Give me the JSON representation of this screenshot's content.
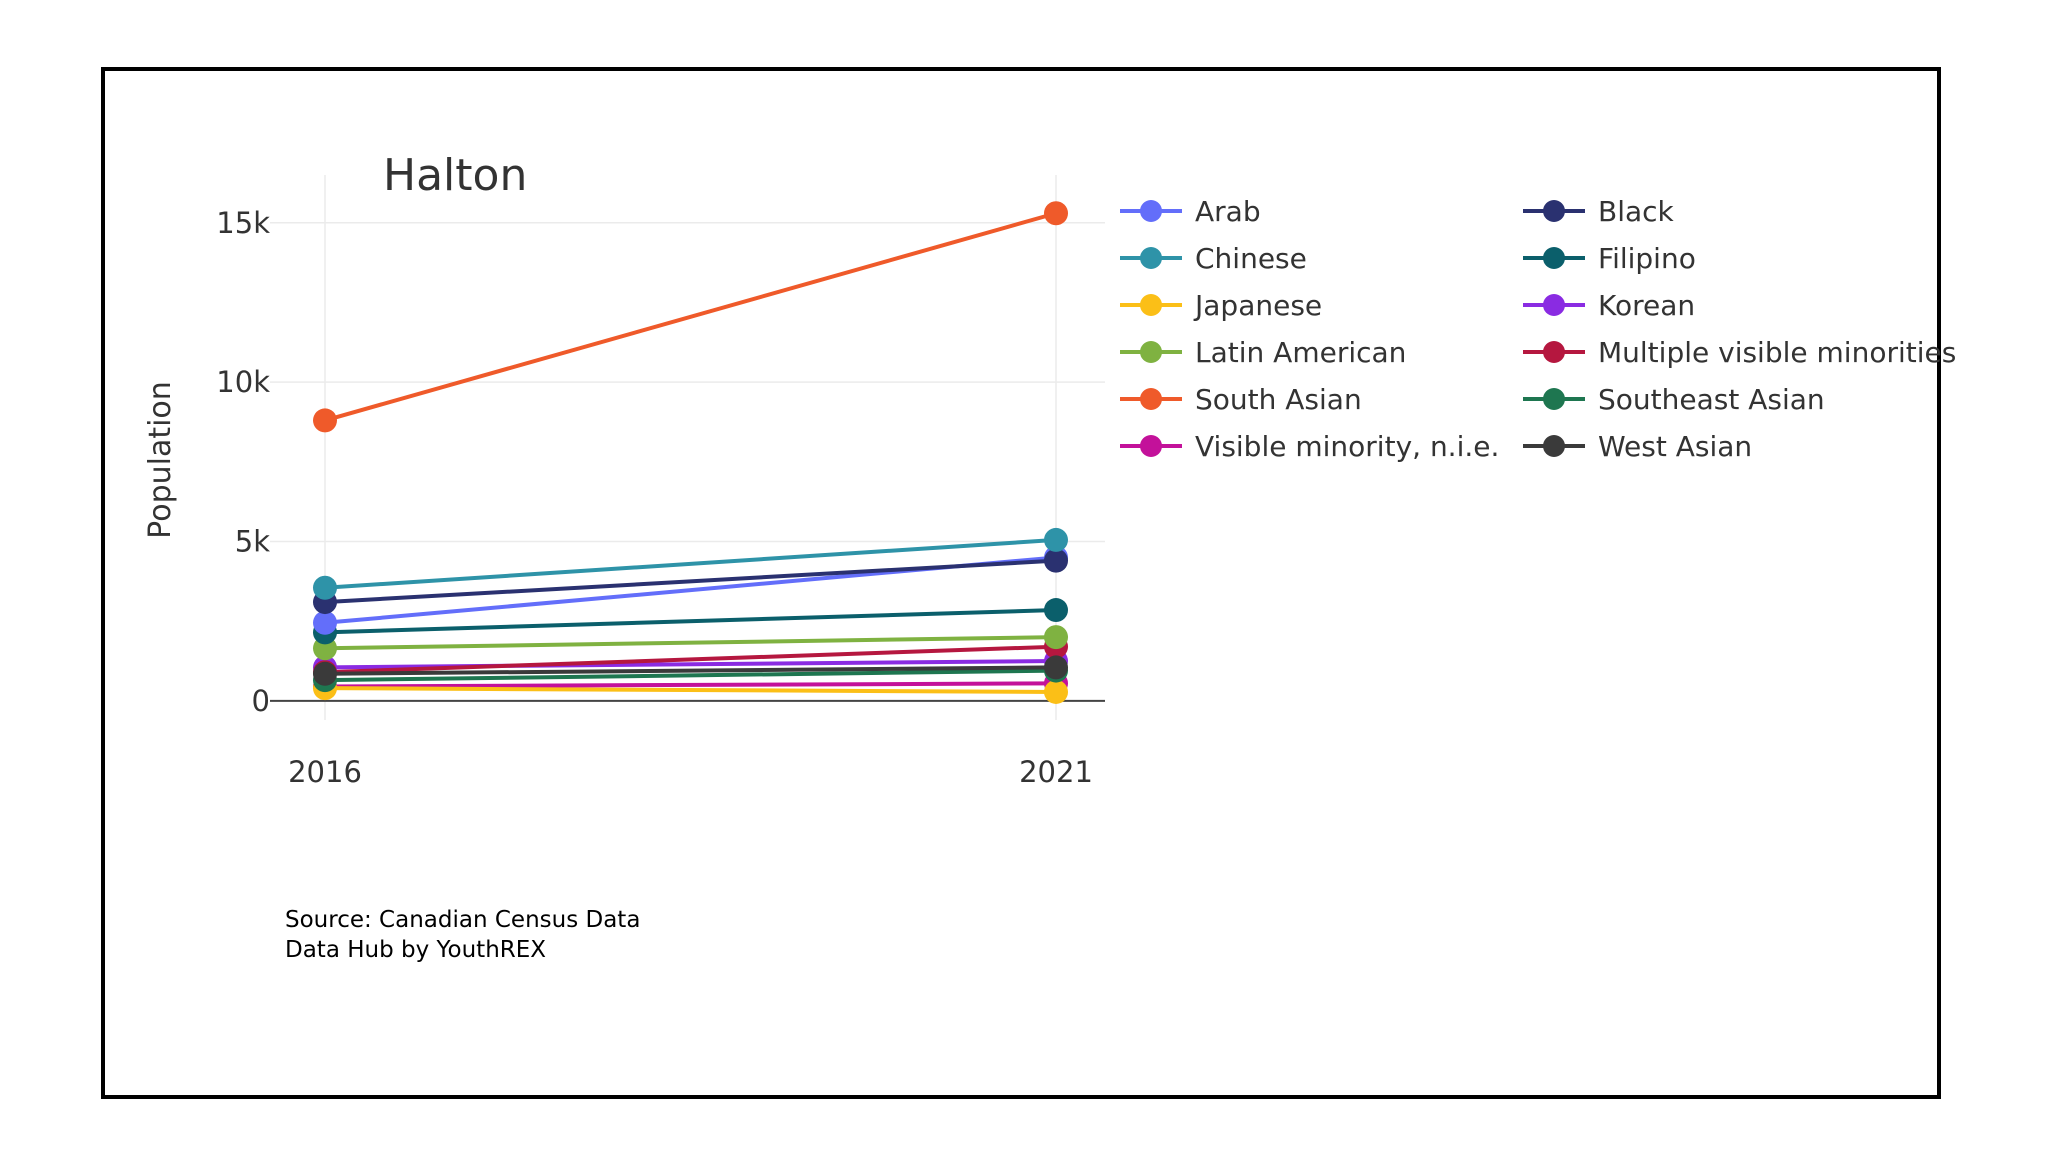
{
  "chart_data": {
    "type": "line",
    "title": "Halton",
    "xlabel": "",
    "ylabel": "Population",
    "x": [
      "2016",
      "2021"
    ],
    "ylim": [
      -600,
      16500
    ],
    "yticks": [
      0,
      5000,
      10000,
      15000
    ],
    "ytick_labels": [
      "0",
      "5k",
      "10k",
      "15k"
    ],
    "grid": true,
    "legend_position": "right",
    "series": [
      {
        "name": "Arab",
        "color": "#636efa",
        "values": [
          2450,
          4500
        ]
      },
      {
        "name": "Black",
        "color": "#2a3170",
        "values": [
          3100,
          4400
        ]
      },
      {
        "name": "Chinese",
        "color": "#2e93a8",
        "values": [
          3550,
          5050
        ]
      },
      {
        "name": "Filipino",
        "color": "#0b5f6b",
        "values": [
          2150,
          2850
        ]
      },
      {
        "name": "Japanese",
        "color": "#fbbf17",
        "values": [
          400,
          280
        ]
      },
      {
        "name": "Korean",
        "color": "#8a2be2",
        "values": [
          1050,
          1250
        ]
      },
      {
        "name": "Latin American",
        "color": "#7fb241",
        "values": [
          1650,
          2000
        ]
      },
      {
        "name": "Multiple visible minorities",
        "color": "#b5173f",
        "values": [
          900,
          1700
        ]
      },
      {
        "name": "South Asian",
        "color": "#ef5a2a",
        "values": [
          8800,
          15300
        ]
      },
      {
        "name": "Southeast Asian",
        "color": "#1e7650",
        "values": [
          650,
          950
        ]
      },
      {
        "name": "Visible minority, n.i.e.",
        "color": "#c3119a",
        "values": [
          450,
          550
        ]
      },
      {
        "name": "West Asian",
        "color": "#3a3a3a",
        "values": [
          850,
          1050
        ]
      }
    ],
    "legend_order": [
      "Arab",
      "Black",
      "Chinese",
      "Filipino",
      "Japanese",
      "Korean",
      "Latin American",
      "Multiple visible minorities",
      "South Asian",
      "Southeast Asian",
      "Visible minority, n.i.e.",
      "West Asian"
    ],
    "draw_order": [
      "South Asian",
      "Visible minority, n.i.e.",
      "Japanese",
      "Southeast Asian",
      "Korean",
      "Multiple visible minorities",
      "Latin American",
      "Filipino",
      "Arab",
      "Black",
      "Chinese",
      "West Asian"
    ]
  },
  "source": {
    "line1": "Source: Canadian Census Data",
    "line2": "Data Hub by YouthREX"
  }
}
